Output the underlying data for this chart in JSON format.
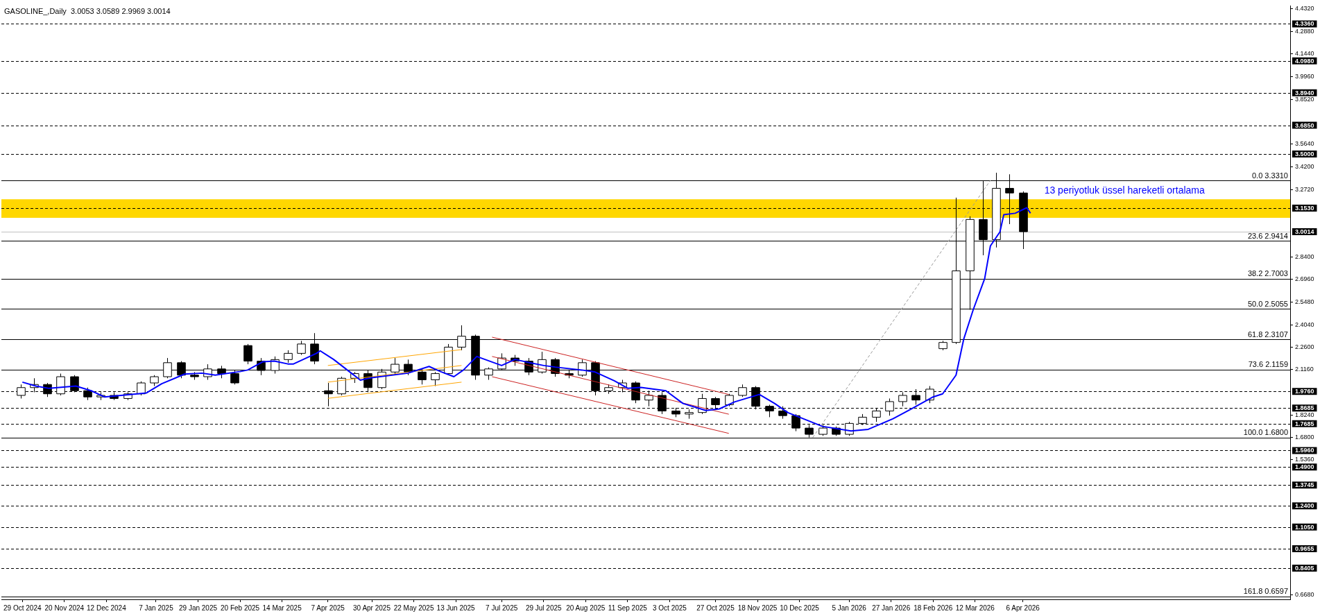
{
  "chart_data": {
    "type": "candlestick",
    "title": "GASOLINE_,Daily  3.0053 3.0589 2.9969 3.0014",
    "xlim": [
      "2024-10-18",
      "2026-08-24"
    ],
    "xticks": [
      {
        "value": "2024-10-29",
        "label": "29 Oct 2024"
      },
      {
        "value": "2024-11-20",
        "label": "20 Nov 2024"
      },
      {
        "value": "2024-12-12",
        "label": "12 Dec 2024"
      },
      {
        "value": "2025-01-07",
        "label": "7 Jan 2025"
      },
      {
        "value": "2025-01-29",
        "label": "29 Jan 2025"
      },
      {
        "value": "2025-02-20",
        "label": "20 Feb 2025"
      },
      {
        "value": "2025-03-14",
        "label": "14 Mar 2025"
      },
      {
        "value": "2025-04-07",
        "label": "7 Apr 2025"
      },
      {
        "value": "2025-04-30",
        "label": "30 Apr 2025"
      },
      {
        "value": "2025-05-22",
        "label": "22 May 2025"
      },
      {
        "value": "2025-06-13",
        "label": "13 Jun 2025"
      },
      {
        "value": "2025-07-07",
        "label": "7 Jul 2025"
      },
      {
        "value": "2025-07-29",
        "label": "29 Jul 2025"
      },
      {
        "value": "2025-08-20",
        "label": "20 Aug 2025"
      },
      {
        "value": "2025-09-11",
        "label": "11 Sep 2025"
      },
      {
        "value": "2025-10-03",
        "label": "3 Oct 2025"
      },
      {
        "value": "2025-10-27",
        "label": "27 Oct 2025"
      },
      {
        "value": "2025-11-18",
        "label": "18 Nov 2025"
      },
      {
        "value": "2025-12-10",
        "label": "10 Dec 2025"
      },
      {
        "value": "2026-01-05",
        "label": "5 Jan 2026"
      },
      {
        "value": "2026-01-27",
        "label": "27 Jan 2026"
      },
      {
        "value": "2026-02-18",
        "label": "18 Feb 2026"
      },
      {
        "value": "2026-03-12",
        "label": "12 Mar 2026"
      },
      {
        "value": "2026-04-06",
        "label": "6 Apr 2026"
      }
    ],
    "ylim": [
      0.64,
      4.452
    ],
    "yticks": [
      {
        "value": 4.432,
        "label": "4.4320"
      },
      {
        "value": 4.288,
        "label": "4.2880"
      },
      {
        "value": 4.144,
        "label": "4.1440"
      },
      {
        "value": 3.996,
        "label": "3.9960"
      },
      {
        "value": 3.852,
        "label": "3.8520"
      },
      {
        "value": 3.564,
        "label": "3.5640"
      },
      {
        "value": 3.42,
        "label": "3.4200"
      },
      {
        "value": 3.272,
        "label": "3.2720"
      },
      {
        "value": 2.84,
        "label": "2.8400"
      },
      {
        "value": 2.696,
        "label": "2.6960"
      },
      {
        "value": 2.548,
        "label": "2.5480"
      },
      {
        "value": 2.404,
        "label": "2.4040"
      },
      {
        "value": 2.26,
        "label": "2.2600"
      },
      {
        "value": 2.116,
        "label": "2.1160"
      },
      {
        "value": 1.824,
        "label": "1.8240"
      },
      {
        "value": 1.68,
        "label": "1.6800"
      },
      {
        "value": 1.536,
        "label": "1.5360"
      },
      {
        "value": 0.668,
        "label": "0.6680"
      }
    ],
    "grid": false,
    "legend": false,
    "bands": [
      {
        "axis": "y",
        "from": 3.09,
        "to": 3.21,
        "color": "#ffd700"
      }
    ],
    "ref_lines": [
      {
        "axis": "y",
        "value": 4.336,
        "label": "4.3360",
        "line_style": "dashed",
        "color": "#000000"
      },
      {
        "axis": "y",
        "value": 4.098,
        "label": "4.0980",
        "line_style": "dashed",
        "color": "#000000"
      },
      {
        "axis": "y",
        "value": 3.894,
        "label": "3.8940",
        "line_style": "dashed",
        "color": "#000000"
      },
      {
        "axis": "y",
        "value": 3.685,
        "label": "3.6850",
        "line_style": "dashed",
        "color": "#000000"
      },
      {
        "axis": "y",
        "value": 3.5,
        "label": "3.5000",
        "line_style": "dashed",
        "color": "#000000"
      },
      {
        "axis": "y",
        "value": 3.153,
        "label": "3.1530",
        "line_style": "dashed",
        "color": "#000000"
      },
      {
        "axis": "y",
        "value": 1.976,
        "label": "1.9760",
        "line_style": "dashed",
        "color": "#000000"
      },
      {
        "axis": "y",
        "value": 1.8685,
        "label": "1.8685",
        "line_style": "dashed",
        "color": "#000000"
      },
      {
        "axis": "y",
        "value": 1.7685,
        "label": "1.7685",
        "line_style": "dashed",
        "color": "#000000"
      },
      {
        "axis": "y",
        "value": 1.596,
        "label": "1.5960",
        "line_style": "dashed",
        "color": "#000000"
      },
      {
        "axis": "y",
        "value": 1.49,
        "label": "1.4900",
        "line_style": "dashed",
        "color": "#000000"
      },
      {
        "axis": "y",
        "value": 1.3745,
        "label": "1.3745",
        "line_style": "dashed",
        "color": "#000000"
      },
      {
        "axis": "y",
        "value": 1.24,
        "label": "1.2400",
        "line_style": "dashed",
        "color": "#000000"
      },
      {
        "axis": "y",
        "value": 1.105,
        "label": "1.1050",
        "line_style": "dashed",
        "color": "#000000"
      },
      {
        "axis": "y",
        "value": 0.9655,
        "label": "0.9655",
        "line_style": "dashed",
        "color": "#000000"
      },
      {
        "axis": "y",
        "value": 0.8405,
        "label": "0.8405",
        "line_style": "dashed",
        "color": "#000000"
      },
      {
        "axis": "y",
        "value": 3.0014,
        "label": "3.0014",
        "line_style": "solid",
        "color": "#c0c0c0"
      },
      {
        "axis": "y",
        "value": 3.331,
        "label": "0.0 3.3310",
        "line_style": "solid",
        "color": "#000000"
      },
      {
        "axis": "y",
        "value": 2.9414,
        "label": "23.6 2.9414",
        "line_style": "solid",
        "color": "#000000"
      },
      {
        "axis": "y",
        "value": 2.7003,
        "label": "38.2 2.7003",
        "line_style": "solid",
        "color": "#000000"
      },
      {
        "axis": "y",
        "value": 2.5055,
        "label": "50.0 2.5055",
        "line_style": "solid",
        "color": "#000000"
      },
      {
        "axis": "y",
        "value": 2.3107,
        "label": "61.8 2.3107",
        "line_style": "solid",
        "color": "#000000"
      },
      {
        "axis": "y",
        "value": 2.1159,
        "label": "73.6 2.1159",
        "line_style": "solid",
        "color": "#000000"
      },
      {
        "axis": "y",
        "value": 1.68,
        "label": "100.0 1.6800",
        "line_style": "solid",
        "color": "#000000"
      },
      {
        "axis": "y",
        "value": 0.6597,
        "label": "161.8 0.6597",
        "line_style": "solid",
        "color": "#000000"
      }
    ],
    "series": [
      {
        "type": "candlestick",
        "x": [
          "2024-10-28",
          "2024-11-04",
          "2024-11-11",
          "2024-11-18",
          "2024-11-25",
          "2024-12-02",
          "2024-12-09",
          "2024-12-16",
          "2024-12-23",
          "2024-12-30",
          "2025-01-06",
          "2025-01-13",
          "2025-01-20",
          "2025-01-27",
          "2025-02-03",
          "2025-02-10",
          "2025-02-17",
          "2025-02-24",
          "2025-03-03",
          "2025-03-10",
          "2025-03-17",
          "2025-03-24",
          "2025-03-31",
          "2025-04-07",
          "2025-04-14",
          "2025-04-21",
          "2025-04-28",
          "2025-05-05",
          "2025-05-12",
          "2025-05-19",
          "2025-05-26",
          "2025-06-02",
          "2025-06-09",
          "2025-06-16",
          "2025-06-23",
          "2025-06-30",
          "2025-07-07",
          "2025-07-14",
          "2025-07-21",
          "2025-07-28",
          "2025-08-04",
          "2025-08-11",
          "2025-08-18",
          "2025-08-25",
          "2025-09-01",
          "2025-09-08",
          "2025-09-15",
          "2025-09-22",
          "2025-09-29",
          "2025-10-06",
          "2025-10-13",
          "2025-10-20",
          "2025-10-27",
          "2025-11-03",
          "2025-11-10",
          "2025-11-17",
          "2025-11-24",
          "2025-12-01",
          "2025-12-08",
          "2025-12-15",
          "2025-12-22",
          "2025-12-29",
          "2026-01-05",
          "2026-01-12",
          "2026-01-19",
          "2026-01-26",
          "2026-02-02",
          "2026-02-09",
          "2026-02-16",
          "2026-02-23",
          "2026-03-02",
          "2026-03-09",
          "2026-03-16",
          "2026-03-23",
          "2026-03-30",
          "2026-04-06"
        ],
        "ohlc": [
          [
            1.95,
            2.02,
            1.93,
            2.0
          ],
          [
            2.0,
            2.06,
            1.97,
            2.02
          ],
          [
            2.02,
            2.03,
            1.94,
            1.96
          ],
          [
            1.96,
            2.09,
            1.95,
            2.07
          ],
          [
            2.07,
            2.08,
            1.97,
            1.98
          ],
          [
            1.98,
            2.0,
            1.92,
            1.94
          ],
          [
            1.94,
            1.97,
            1.92,
            1.95
          ],
          [
            1.95,
            1.97,
            1.92,
            1.93
          ],
          [
            1.93,
            1.97,
            1.92,
            1.96
          ],
          [
            1.96,
            2.04,
            1.95,
            2.03
          ],
          [
            2.03,
            2.08,
            2.01,
            2.07
          ],
          [
            2.07,
            2.19,
            2.06,
            2.16
          ],
          [
            2.16,
            2.17,
            2.06,
            2.08
          ],
          [
            2.08,
            2.1,
            2.05,
            2.07
          ],
          [
            2.07,
            2.15,
            2.05,
            2.12
          ],
          [
            2.12,
            2.14,
            2.06,
            2.09
          ],
          [
            2.09,
            2.11,
            2.02,
            2.03
          ],
          [
            2.27,
            2.28,
            2.15,
            2.17
          ],
          [
            2.17,
            2.19,
            2.08,
            2.11
          ],
          [
            2.11,
            2.2,
            2.09,
            2.18
          ],
          [
            2.18,
            2.24,
            2.16,
            2.22
          ],
          [
            2.22,
            2.3,
            2.21,
            2.28
          ],
          [
            2.28,
            2.35,
            2.15,
            2.17
          ],
          [
            1.98,
            2.03,
            1.88,
            1.96
          ],
          [
            1.96,
            2.07,
            1.95,
            2.06
          ],
          [
            2.06,
            2.1,
            2.03,
            2.09
          ],
          [
            2.09,
            2.11,
            1.97,
            2.0
          ],
          [
            2.0,
            2.12,
            1.99,
            2.1
          ],
          [
            2.1,
            2.19,
            2.08,
            2.15
          ],
          [
            2.15,
            2.18,
            2.08,
            2.1
          ],
          [
            2.1,
            2.12,
            2.02,
            2.05
          ],
          [
            2.05,
            2.1,
            2.01,
            2.09
          ],
          [
            2.09,
            2.28,
            2.08,
            2.26
          ],
          [
            2.26,
            2.4,
            2.24,
            2.33
          ],
          [
            2.33,
            2.34,
            2.05,
            2.08
          ],
          [
            2.08,
            2.13,
            2.05,
            2.12
          ],
          [
            2.12,
            2.22,
            2.11,
            2.19
          ],
          [
            2.19,
            2.21,
            2.14,
            2.17
          ],
          [
            2.17,
            2.19,
            2.08,
            2.1
          ],
          [
            2.1,
            2.23,
            2.09,
            2.18
          ],
          [
            2.18,
            2.19,
            2.07,
            2.09
          ],
          [
            2.09,
            2.11,
            2.06,
            2.08
          ],
          [
            2.08,
            2.18,
            2.07,
            2.16
          ],
          [
            2.16,
            2.17,
            1.95,
            1.98
          ],
          [
            1.98,
            2.02,
            1.96,
            2.0
          ],
          [
            2.0,
            2.05,
            1.97,
            2.03
          ],
          [
            2.03,
            2.04,
            1.9,
            1.92
          ],
          [
            1.92,
            1.98,
            1.88,
            1.95
          ],
          [
            1.95,
            1.97,
            1.83,
            1.85
          ],
          [
            1.85,
            1.87,
            1.81,
            1.83
          ],
          [
            1.83,
            1.86,
            1.8,
            1.84
          ],
          [
            1.84,
            1.96,
            1.83,
            1.93
          ],
          [
            1.93,
            1.94,
            1.86,
            1.89
          ],
          [
            1.89,
            1.96,
            1.88,
            1.95
          ],
          [
            1.95,
            2.02,
            1.94,
            2.0
          ],
          [
            2.0,
            2.01,
            1.86,
            1.88
          ],
          [
            1.88,
            1.89,
            1.81,
            1.85
          ],
          [
            1.85,
            1.88,
            1.8,
            1.82
          ],
          [
            1.82,
            1.83,
            1.72,
            1.74
          ],
          [
            1.74,
            1.76,
            1.68,
            1.7
          ],
          [
            1.7,
            1.76,
            1.69,
            1.74
          ],
          [
            1.74,
            1.75,
            1.69,
            1.7
          ],
          [
            1.7,
            1.78,
            1.69,
            1.77
          ],
          [
            1.77,
            1.83,
            1.76,
            1.81
          ],
          [
            1.81,
            1.87,
            1.78,
            1.85
          ],
          [
            1.85,
            1.93,
            1.82,
            1.91
          ],
          [
            1.91,
            1.97,
            1.88,
            1.95
          ],
          [
            1.95,
            1.99,
            1.89,
            1.92
          ],
          [
            1.92,
            2.01,
            1.9,
            1.99
          ],
          [
            2.25,
            2.3,
            2.24,
            2.29
          ],
          [
            2.29,
            3.22,
            2.28,
            2.75
          ],
          [
            2.75,
            3.1,
            2.5,
            3.08
          ],
          [
            3.08,
            3.33,
            2.85,
            2.95
          ],
          [
            2.95,
            3.38,
            2.9,
            3.28
          ],
          [
            3.28,
            3.37,
            3.05,
            3.25
          ],
          [
            3.25,
            3.26,
            2.89,
            3.0014
          ]
        ]
      },
      {
        "type": "line",
        "name": "13 periyotluk üssel hareketli ortalama",
        "color": "#0000ff",
        "x": [
          "2024-10-29",
          "2024-11-05",
          "2024-11-12",
          "2024-11-26",
          "2024-12-04",
          "2024-12-11",
          "2025-01-02",
          "2025-01-10",
          "2025-01-22",
          "2025-01-31",
          "2025-02-07",
          "2025-02-20",
          "2025-02-24",
          "2025-03-04",
          "2025-03-10",
          "2025-03-17",
          "2025-03-20",
          "2025-04-01",
          "2025-04-03",
          "2025-04-10",
          "2025-04-24",
          "2025-04-30",
          "2025-05-19",
          "2025-05-30",
          "2025-06-05",
          "2025-06-12",
          "2025-06-17",
          "2025-06-24",
          "2025-07-07",
          "2025-07-14",
          "2025-07-21",
          "2025-07-29",
          "2025-08-04",
          "2025-08-18",
          "2025-08-25",
          "2025-09-04",
          "2025-09-11",
          "2025-09-18",
          "2025-10-01",
          "2025-10-10",
          "2025-10-22",
          "2025-10-29",
          "2025-11-06",
          "2025-11-19",
          "2025-11-27",
          "2025-12-04",
          "2025-12-12",
          "2025-12-22",
          "2026-01-06",
          "2026-01-15",
          "2026-01-28",
          "2026-02-06",
          "2026-02-18",
          "2026-02-23",
          "2026-03-02",
          "2026-03-06",
          "2026-03-11",
          "2026-03-17",
          "2026-03-20",
          "2026-03-25",
          "2026-03-27",
          "2026-04-02",
          "2026-04-08",
          "2026-04-10"
        ],
        "values": [
          2.035,
          2.01,
          1.995,
          2.01,
          1.98,
          1.94,
          1.966,
          2.025,
          2.087,
          2.093,
          2.08,
          2.103,
          2.113,
          2.166,
          2.17,
          2.152,
          2.152,
          2.22,
          2.236,
          2.181,
          2.048,
          2.064,
          2.093,
          2.136,
          2.103,
          2.07,
          2.113,
          2.2,
          2.142,
          2.181,
          2.162,
          2.142,
          2.132,
          2.113,
          2.1,
          2.044,
          1.996,
          2.001,
          1.98,
          1.898,
          1.853,
          1.863,
          1.908,
          1.956,
          1.898,
          1.839,
          1.8,
          1.751,
          1.722,
          1.732,
          1.8,
          1.859,
          1.94,
          1.96,
          2.08,
          2.31,
          2.5,
          2.7,
          2.91,
          3.0,
          3.11,
          3.12,
          3.155,
          3.12
        ]
      },
      {
        "type": "line",
        "color": "#ffa500",
        "line_style": "solid",
        "x": [
          "2025-04-07",
          "2025-06-16"
        ],
        "values": [
          2.142,
          2.244
        ]
      },
      {
        "type": "line",
        "color": "#ffa500",
        "line_style": "solid",
        "x": [
          "2025-04-07",
          "2025-06-16"
        ],
        "values": [
          2.035,
          2.142
        ]
      },
      {
        "type": "line",
        "color": "#ffa500",
        "line_style": "solid",
        "x": [
          "2025-04-07",
          "2025-06-16"
        ],
        "values": [
          1.931,
          2.035
        ]
      },
      {
        "type": "line",
        "color": "#cc2222",
        "line_style": "solid",
        "x": [
          "2025-07-02",
          "2025-11-03"
        ],
        "values": [
          2.324,
          1.956
        ]
      },
      {
        "type": "line",
        "color": "#cc2222",
        "line_style": "solid",
        "x": [
          "2025-07-02",
          "2025-11-03"
        ],
        "values": [
          2.2,
          1.829
        ]
      },
      {
        "type": "line",
        "color": "#cc2222",
        "line_style": "solid",
        "x": [
          "2025-07-02",
          "2025-11-03"
        ],
        "values": [
          2.07,
          1.706
        ]
      },
      {
        "type": "line",
        "color": "#999999",
        "line_style": "dashed",
        "x": [
          "2025-12-17",
          "2026-03-20"
        ],
        "values": [
          1.68,
          3.331
        ]
      }
    ]
  }
}
